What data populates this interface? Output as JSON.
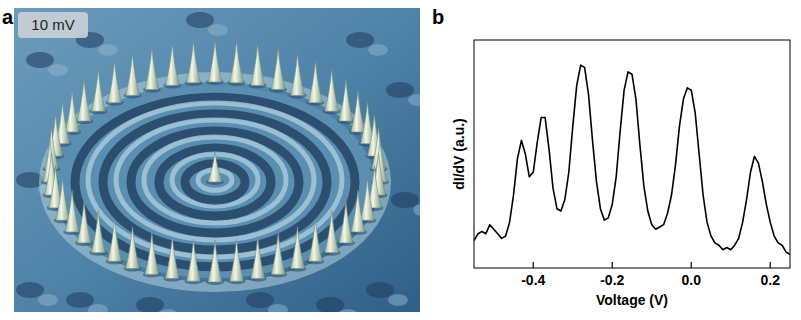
{
  "panel_a": {
    "letter": "a",
    "image_label": "10 mV"
  },
  "panel_b": {
    "letter": "b"
  },
  "chart_data": {
    "type": "line",
    "x_label": "Voltage (V)",
    "y_label": "dI/dV (a.u.)",
    "x": [
      -0.55,
      -0.54,
      -0.53,
      -0.52,
      -0.51,
      -0.5,
      -0.49,
      -0.48,
      -0.47,
      -0.46,
      -0.45,
      -0.44,
      -0.43,
      -0.42,
      -0.41,
      -0.4,
      -0.39,
      -0.38,
      -0.37,
      -0.36,
      -0.35,
      -0.34,
      -0.33,
      -0.32,
      -0.31,
      -0.3,
      -0.29,
      -0.28,
      -0.27,
      -0.26,
      -0.25,
      -0.24,
      -0.23,
      -0.22,
      -0.21,
      -0.2,
      -0.19,
      -0.18,
      -0.17,
      -0.16,
      -0.15,
      -0.14,
      -0.13,
      -0.12,
      -0.11,
      -0.1,
      -0.09,
      -0.08,
      -0.07,
      -0.06,
      -0.05,
      -0.04,
      -0.03,
      -0.02,
      -0.01,
      0,
      0.01,
      0.02,
      0.03,
      0.04,
      0.05,
      0.06,
      0.07,
      0.08,
      0.09,
      0.1,
      0.11,
      0.12,
      0.13,
      0.14,
      0.15,
      0.16,
      0.17,
      0.18,
      0.19,
      0.2,
      0.21,
      0.22,
      0.23,
      0.24,
      0.25
    ],
    "values": [
      0.12,
      0.15,
      0.16,
      0.15,
      0.19,
      0.17,
      0.15,
      0.13,
      0.14,
      0.2,
      0.32,
      0.48,
      0.56,
      0.5,
      0.4,
      0.42,
      0.55,
      0.66,
      0.66,
      0.52,
      0.35,
      0.26,
      0.25,
      0.3,
      0.42,
      0.62,
      0.8,
      0.89,
      0.88,
      0.76,
      0.56,
      0.38,
      0.26,
      0.21,
      0.22,
      0.28,
      0.4,
      0.6,
      0.78,
      0.86,
      0.85,
      0.74,
      0.54,
      0.36,
      0.25,
      0.19,
      0.17,
      0.18,
      0.19,
      0.24,
      0.32,
      0.45,
      0.62,
      0.74,
      0.79,
      0.78,
      0.68,
      0.5,
      0.32,
      0.2,
      0.14,
      0.11,
      0.1,
      0.08,
      0.09,
      0.08,
      0.1,
      0.13,
      0.2,
      0.3,
      0.42,
      0.49,
      0.46,
      0.38,
      0.28,
      0.2,
      0.14,
      0.11,
      0.1,
      0.07,
      0.06
    ],
    "color": "#000000",
    "xlim": [
      -0.55,
      0.25
    ],
    "ylim": [
      0,
      1
    ],
    "xticks": [
      -0.4,
      -0.2,
      {
        "value": 0,
        "label": "0.0"
      },
      0.2
    ],
    "tick_labels": "x",
    "grid": false
  }
}
